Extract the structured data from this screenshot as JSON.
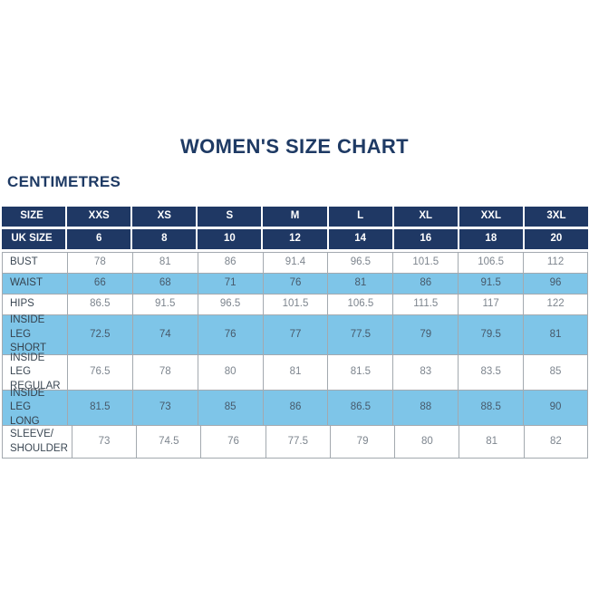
{
  "title": "WOMEN'S SIZE CHART",
  "unit_label": "CENTIMETRES",
  "colors": {
    "navy_header": "#1f3864",
    "light_blue_row": "#7ec5e8",
    "white_row": "#ffffff",
    "border_gray": "#a3a9af",
    "title_navy": "#1e3a64"
  },
  "table": {
    "size_row": {
      "label": "SIZE",
      "values": [
        "XXS",
        "XS",
        "S",
        "M",
        "L",
        "XL",
        "XXL",
        "3XL"
      ]
    },
    "uk_size_row": {
      "label": "UK SIZE",
      "values": [
        "6",
        "8",
        "10",
        "12",
        "14",
        "16",
        "18",
        "20"
      ]
    },
    "rows": [
      {
        "label": "BUST",
        "values": [
          "78",
          "81",
          "86",
          "91.4",
          "96.5",
          "101.5",
          "106.5",
          "112"
        ]
      },
      {
        "label": "WAIST",
        "values": [
          "66",
          "68",
          "71",
          "76",
          "81",
          "86",
          "91.5",
          "96"
        ]
      },
      {
        "label": "HIPS",
        "values": [
          "86.5",
          "91.5",
          "96.5",
          "101.5",
          "106.5",
          "111.5",
          "117",
          "122"
        ]
      },
      {
        "label": "INSIDE LEG\nSHORT",
        "values": [
          "72.5",
          "74",
          "76",
          "77",
          "77.5",
          "79",
          "79.5",
          "81"
        ]
      },
      {
        "label": "INSIDE LEG\nREGULAR",
        "values": [
          "76.5",
          "78",
          "80",
          "81",
          "81.5",
          "83",
          "83.5",
          "85"
        ]
      },
      {
        "label": "INSIDE LEG\nLONG",
        "values": [
          "81.5",
          "73",
          "85",
          "86",
          "86.5",
          "88",
          "88.5",
          "90"
        ]
      },
      {
        "label": "SLEEVE/\nSHOULDER",
        "values": [
          "73",
          "74.5",
          "76",
          "77.5",
          "79",
          "80",
          "81",
          "82"
        ]
      }
    ]
  },
  "chart_data": {
    "type": "table",
    "title": "WOMEN'S SIZE CHART",
    "subtitle": "CENTIMETRES",
    "columns": [
      "SIZE",
      "XXS",
      "XS",
      "S",
      "M",
      "L",
      "XL",
      "XXL",
      "3XL"
    ],
    "rows": [
      [
        "UK SIZE",
        6,
        8,
        10,
        12,
        14,
        16,
        18,
        20
      ],
      [
        "BUST",
        78,
        81,
        86,
        91.4,
        96.5,
        101.5,
        106.5,
        112
      ],
      [
        "WAIST",
        66,
        68,
        71,
        76,
        81,
        86,
        91.5,
        96
      ],
      [
        "HIPS",
        86.5,
        91.5,
        96.5,
        101.5,
        106.5,
        111.5,
        117,
        122
      ],
      [
        "INSIDE LEG SHORT",
        72.5,
        74,
        76,
        77,
        77.5,
        79,
        79.5,
        81
      ],
      [
        "INSIDE LEG REGULAR",
        76.5,
        78,
        80,
        81,
        81.5,
        83,
        83.5,
        85
      ],
      [
        "INSIDE LEG LONG",
        81.5,
        73,
        85,
        86,
        86.5,
        88,
        88.5,
        90
      ],
      [
        "SLEEVE/SHOULDER",
        73,
        74.5,
        76,
        77.5,
        79,
        80,
        81,
        82
      ]
    ],
    "layout": {
      "grid": true,
      "header_style": "navy with white bold text",
      "row_striping": "alternating white and light blue starting after BUST"
    }
  }
}
